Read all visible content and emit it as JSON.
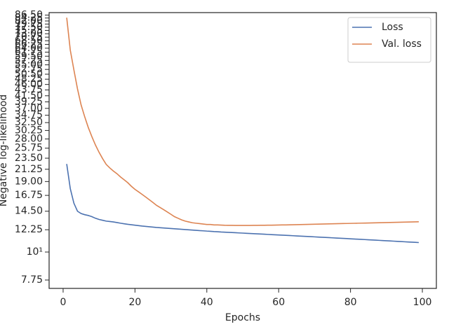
{
  "chart_data": {
    "type": "line",
    "xlabel": "Epochs",
    "ylabel": "Negative log-likelihood",
    "x": [
      1,
      2,
      3,
      4,
      5,
      6,
      7,
      8,
      9,
      10,
      11,
      12,
      13,
      14,
      15,
      16,
      17,
      18,
      19,
      20,
      21,
      22,
      23,
      24,
      25,
      26,
      27,
      28,
      29,
      30,
      31,
      32,
      33,
      34,
      35,
      36,
      37,
      38,
      39,
      40,
      41,
      42,
      43,
      44,
      45,
      46,
      47,
      48,
      49,
      50,
      51,
      52,
      53,
      54,
      55,
      56,
      57,
      58,
      59,
      60,
      61,
      62,
      63,
      64,
      65,
      66,
      67,
      68,
      69,
      70,
      71,
      72,
      73,
      74,
      75,
      76,
      77,
      78,
      79,
      80,
      81,
      82,
      83,
      84,
      85,
      86,
      87,
      88,
      89,
      90,
      91,
      92,
      93,
      94,
      95,
      96,
      97,
      98,
      99
    ],
    "series": [
      {
        "name": "Loss",
        "color": "#4c72b0",
        "values": [
          22.3,
          17.8,
          15.6,
          14.5,
          14.2,
          14.05,
          13.95,
          13.8,
          13.6,
          13.45,
          13.35,
          13.25,
          13.2,
          13.15,
          13.08,
          13.0,
          12.93,
          12.87,
          12.82,
          12.77,
          12.72,
          12.67,
          12.63,
          12.59,
          12.55,
          12.51,
          12.48,
          12.45,
          12.42,
          12.39,
          12.36,
          12.33,
          12.3,
          12.27,
          12.24,
          12.21,
          12.18,
          12.15,
          12.13,
          12.1,
          12.08,
          12.05,
          12.03,
          12.0,
          11.98,
          11.96,
          11.94,
          11.92,
          11.9,
          11.88,
          11.86,
          11.84,
          11.82,
          11.8,
          11.78,
          11.76,
          11.74,
          11.72,
          11.7,
          11.68,
          11.66,
          11.64,
          11.62,
          11.6,
          11.58,
          11.56,
          11.54,
          11.52,
          11.5,
          11.48,
          11.46,
          11.44,
          11.42,
          11.4,
          11.38,
          11.36,
          11.34,
          11.32,
          11.3,
          11.28,
          11.26,
          11.24,
          11.22,
          11.2,
          11.18,
          11.16,
          11.14,
          11.12,
          11.1,
          11.08,
          11.06,
          11.04,
          11.02,
          11.0,
          10.98,
          10.96,
          10.94,
          10.92,
          10.9
        ]
      },
      {
        "name": "Val. loss",
        "color": "#dd8452",
        "values": [
          84.5,
          62.8,
          52.5,
          44.2,
          38.2,
          34.3,
          31.1,
          28.6,
          26.5,
          24.8,
          23.4,
          22.2,
          21.5,
          20.9,
          20.4,
          19.8,
          19.3,
          18.8,
          18.2,
          17.7,
          17.3,
          16.9,
          16.5,
          16.1,
          15.7,
          15.3,
          15.0,
          14.7,
          14.4,
          14.1,
          13.8,
          13.6,
          13.4,
          13.25,
          13.15,
          13.05,
          13.0,
          12.95,
          12.9,
          12.85,
          12.85,
          12.8,
          12.8,
          12.78,
          12.76,
          12.75,
          12.75,
          12.74,
          12.74,
          12.74,
          12.74,
          12.74,
          12.75,
          12.75,
          12.76,
          12.76,
          12.77,
          12.77,
          12.78,
          12.79,
          12.8,
          12.8,
          12.81,
          12.82,
          12.83,
          12.84,
          12.85,
          12.86,
          12.87,
          12.88,
          12.89,
          12.9,
          12.91,
          12.92,
          12.93,
          12.94,
          12.95,
          12.96,
          12.97,
          12.98,
          12.99,
          13.0,
          13.01,
          13.02,
          13.03,
          13.04,
          13.05,
          13.06,
          13.07,
          13.08,
          13.09,
          13.1,
          13.11,
          13.12,
          13.13,
          13.14,
          13.15,
          13.16,
          13.17
        ]
      }
    ],
    "xlim": [
      -3.9,
      103.9
    ],
    "xticks": [
      0,
      20,
      40,
      60,
      80,
      100
    ],
    "ylim": [
      7.18,
      88.5
    ],
    "ylog": true,
    "yticks": [
      7.75,
      {
        "value": 10,
        "label": "10¹"
      },
      12.25,
      {
        "value": 14.5,
        "label": "14.50"
      },
      16.75,
      {
        "value": 19,
        "label": "19.00"
      },
      21.25,
      {
        "value": 23.5,
        "label": "23.50"
      },
      25.75,
      {
        "value": 28,
        "label": "28.00"
      },
      30.25,
      {
        "value": 32.5,
        "label": "32.50"
      },
      34.75,
      {
        "value": 37,
        "label": "37.00"
      },
      39.25,
      {
        "value": 41.5,
        "label": "41.50"
      },
      43.75,
      {
        "value": 46,
        "label": "46.00"
      },
      48.25,
      {
        "value": 50.5,
        "label": "50.50"
      },
      52.75,
      {
        "value": 55,
        "label": "55.00"
      },
      57.25,
      {
        "value": 59.5,
        "label": "59.50"
      },
      61.75,
      {
        "value": 64,
        "label": "64.00"
      },
      66.25,
      {
        "value": 68.5,
        "label": "68.50"
      },
      70.75,
      {
        "value": 73,
        "label": "73.00"
      },
      75.25,
      {
        "value": 77.5,
        "label": "77.50"
      },
      79.75,
      {
        "value": 82,
        "label": "82.00"
      },
      84.25,
      {
        "value": 86.5,
        "label": "86.50"
      }
    ],
    "grid": false,
    "legend": "upper right"
  }
}
